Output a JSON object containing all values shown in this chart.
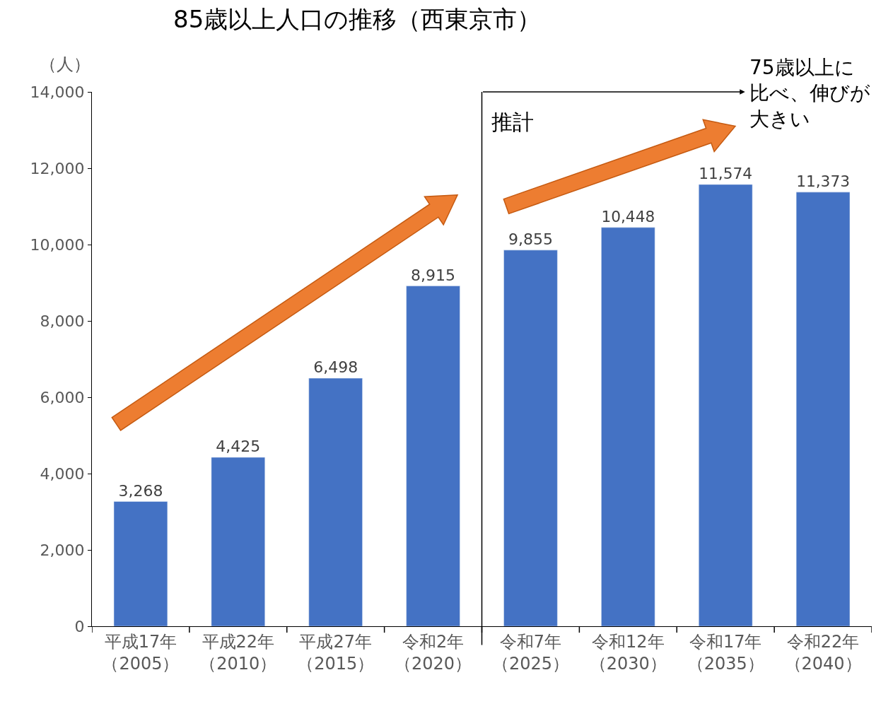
{
  "chart_data": {
    "type": "bar",
    "title": "85歳以上人口の推移（西東京市）",
    "ylabel": "（人）",
    "categories": [
      "平成17年（2005）",
      "平成22年（2010）",
      "平成27年（2015）",
      "令和2年（2020）",
      "令和7年（2025）",
      "令和12年（2030）",
      "令和17年（2035）",
      "令和22年（2040）"
    ],
    "values": [
      3268,
      4425,
      6498,
      8915,
      9855,
      10448,
      11574,
      11373
    ],
    "value_labels": [
      "3,268",
      "4,425",
      "6,498",
      "8,915",
      "9,855",
      "10,448",
      "11,574",
      "11,373"
    ],
    "color": "#4472c4",
    "ylim": [
      0,
      14000
    ],
    "yticks": [
      {
        "value": 0,
        "label": "0"
      },
      {
        "value": 2000,
        "label": "2,000"
      },
      {
        "value": 4000,
        "label": "4,000"
      },
      {
        "value": 6000,
        "label": "6,000"
      },
      {
        "value": 8000,
        "label": "8,000"
      },
      {
        "value": 10000,
        "label": "10,000"
      },
      {
        "value": 12000,
        "label": "12,000"
      },
      {
        "value": 14000,
        "label": "14,000"
      }
    ],
    "annotations": [
      "推計",
      "75歳以上に比べ、伸びが大きい"
    ],
    "legend": false
  }
}
